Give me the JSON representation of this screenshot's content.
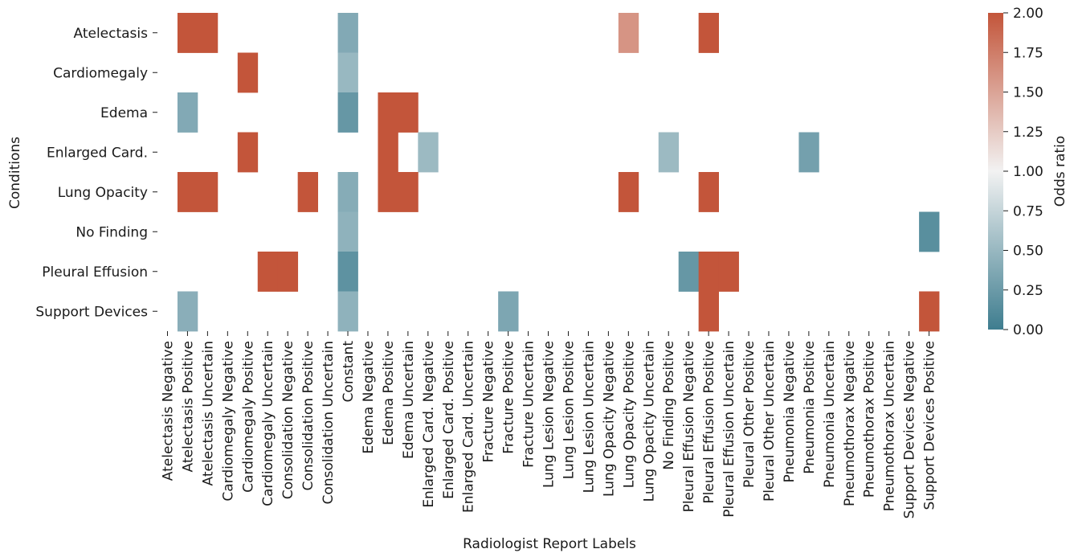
{
  "chart_data": {
    "type": "heatmap",
    "title": "",
    "xlabel": "Radiologist Report Labels",
    "ylabel": "Conditions",
    "x_categories": [
      "Atelectasis Negative",
      "Atelectasis Positive",
      "Atelectasis Uncertain",
      "Cardiomegaly Negative",
      "Cardiomegaly Positive",
      "Cardiomegaly Uncertain",
      "Consolidation Negative",
      "Consolidation Positive",
      "Consolidation Uncertain",
      "Constant",
      "Edema Negative",
      "Edema Positive",
      "Edema Uncertain",
      "Enlarged Card. Negative",
      "Enlarged Card. Positive",
      "Enlarged Card. Uncertain",
      "Fracture Negative",
      "Fracture Positive",
      "Fracture Uncertain",
      "Lung Lesion Negative",
      "Lung Lesion Positive",
      "Lung Lesion Uncertain",
      "Lung Opacity Negative",
      "Lung Opacity Positive",
      "Lung Opacity Uncertain",
      "No Finding Positive",
      "Pleural Effusion Negative",
      "Pleural Effusion Positive",
      "Pleural Effusion Uncertain",
      "Pleural Other Positive",
      "Pleural Other Uncertain",
      "Pneumonia Negative",
      "Pneumonia Positive",
      "Pneumonia Uncertain",
      "Pneumothorax Negative",
      "Pneumothorax Positive",
      "Pneumothorax Uncertain",
      "Support Devices Negative",
      "Support Devices Positive"
    ],
    "y_categories": [
      "Atelectasis",
      "Cardiomegaly",
      "Edema",
      "Enlarged Card.",
      "Lung Opacity",
      "No Finding",
      "Pleural Effusion",
      "Support Devices"
    ],
    "values": [
      [
        null,
        2.0,
        2.0,
        null,
        null,
        null,
        null,
        null,
        null,
        0.38,
        null,
        null,
        null,
        null,
        null,
        null,
        null,
        null,
        null,
        null,
        null,
        null,
        null,
        1.6,
        null,
        null,
        null,
        2.0,
        null,
        null,
        null,
        null,
        null,
        null,
        null,
        null,
        null,
        null,
        null
      ],
      [
        null,
        null,
        null,
        null,
        2.0,
        null,
        null,
        null,
        null,
        0.5,
        null,
        null,
        null,
        null,
        null,
        null,
        null,
        null,
        null,
        null,
        null,
        null,
        null,
        null,
        null,
        null,
        null,
        null,
        null,
        null,
        null,
        null,
        null,
        null,
        null,
        null,
        null,
        null,
        null
      ],
      [
        null,
        0.38,
        null,
        null,
        null,
        null,
        null,
        null,
        null,
        0.22,
        null,
        2.0,
        2.0,
        null,
        null,
        null,
        null,
        null,
        null,
        null,
        null,
        null,
        null,
        null,
        null,
        null,
        null,
        null,
        null,
        null,
        null,
        null,
        null,
        null,
        null,
        null,
        null,
        null,
        null
      ],
      [
        null,
        null,
        null,
        null,
        2.0,
        null,
        null,
        null,
        null,
        null,
        null,
        2.0,
        null,
        0.52,
        null,
        null,
        null,
        null,
        null,
        null,
        null,
        null,
        null,
        null,
        null,
        0.52,
        null,
        null,
        null,
        null,
        null,
        null,
        0.3,
        null,
        null,
        null,
        null,
        null,
        null
      ],
      [
        null,
        2.0,
        2.0,
        null,
        null,
        null,
        null,
        2.0,
        null,
        0.4,
        null,
        2.0,
        2.0,
        null,
        null,
        null,
        null,
        null,
        null,
        null,
        null,
        null,
        null,
        2.0,
        null,
        null,
        null,
        2.0,
        null,
        null,
        null,
        null,
        null,
        null,
        null,
        null,
        null,
        null,
        null
      ],
      [
        null,
        null,
        null,
        null,
        null,
        null,
        null,
        null,
        null,
        0.45,
        null,
        null,
        null,
        null,
        null,
        null,
        null,
        null,
        null,
        null,
        null,
        null,
        null,
        null,
        null,
        null,
        null,
        null,
        null,
        null,
        null,
        null,
        null,
        null,
        null,
        null,
        null,
        null,
        0.15
      ],
      [
        null,
        null,
        null,
        null,
        null,
        2.0,
        2.0,
        null,
        null,
        0.18,
        null,
        null,
        null,
        null,
        null,
        null,
        null,
        null,
        null,
        null,
        null,
        null,
        null,
        null,
        null,
        null,
        0.22,
        2.0,
        2.0,
        null,
        null,
        null,
        null,
        null,
        null,
        null,
        null,
        null,
        null
      ],
      [
        null,
        0.42,
        null,
        null,
        null,
        null,
        null,
        null,
        null,
        0.45,
        null,
        null,
        null,
        null,
        null,
        null,
        null,
        0.35,
        null,
        null,
        null,
        null,
        null,
        null,
        null,
        null,
        null,
        2.0,
        null,
        null,
        null,
        null,
        null,
        null,
        null,
        null,
        null,
        null,
        2.0
      ]
    ],
    "colorbar": {
      "label": "Odds ratio",
      "vmin": 0.0,
      "vmax": 2.0,
      "ticks": [
        "0.00",
        "0.25",
        "0.50",
        "0.75",
        "1.00",
        "1.25",
        "1.50",
        "1.75",
        "2.00"
      ],
      "low_color": "#3e7d8f",
      "mid_color": "#f2f2f2",
      "high_color": "#c3553a"
    }
  }
}
